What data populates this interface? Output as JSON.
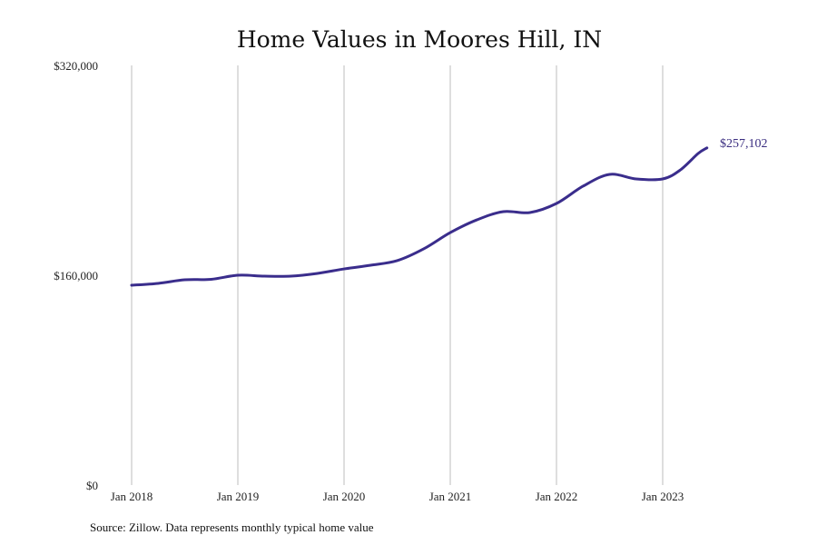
{
  "chart_data": {
    "type": "line",
    "title": "Home Values in Moores Hill, IN",
    "source": "Source: Zillow. Data represents monthly typical home value",
    "xlabel": "",
    "ylabel": "",
    "ylim": [
      0,
      320000
    ],
    "y_ticks": [
      {
        "value": 0,
        "label": "$0"
      },
      {
        "value": 160000,
        "label": "$160,000"
      },
      {
        "value": 320000,
        "label": "$320,000"
      }
    ],
    "x_ticks": [
      {
        "month": 0,
        "label": "Jan 2018"
      },
      {
        "month": 12,
        "label": "Jan 2019"
      },
      {
        "month": 24,
        "label": "Jan 2020"
      },
      {
        "month": 36,
        "label": "Jan 2021"
      },
      {
        "month": 48,
        "label": "Jan 2022"
      },
      {
        "month": 60,
        "label": "Jan 2023"
      }
    ],
    "grid": "vertical",
    "line_color": "#3a2d8c",
    "series": [
      {
        "name": "Typical home value",
        "x_months_since_jan_2018": [
          0,
          3,
          6,
          9,
          12,
          15,
          18,
          21,
          24,
          27,
          30,
          33,
          36,
          39,
          42,
          45,
          48,
          51,
          54,
          57,
          60,
          62,
          64,
          65
        ],
        "values": [
          152400,
          153800,
          156500,
          156900,
          160000,
          159300,
          159300,
          161400,
          164800,
          167600,
          171100,
          180100,
          192500,
          202200,
          208500,
          207800,
          214700,
          227900,
          236900,
          233400,
          233400,
          240300,
          252800,
          257102
        ]
      }
    ],
    "end_label": "$257,102"
  }
}
